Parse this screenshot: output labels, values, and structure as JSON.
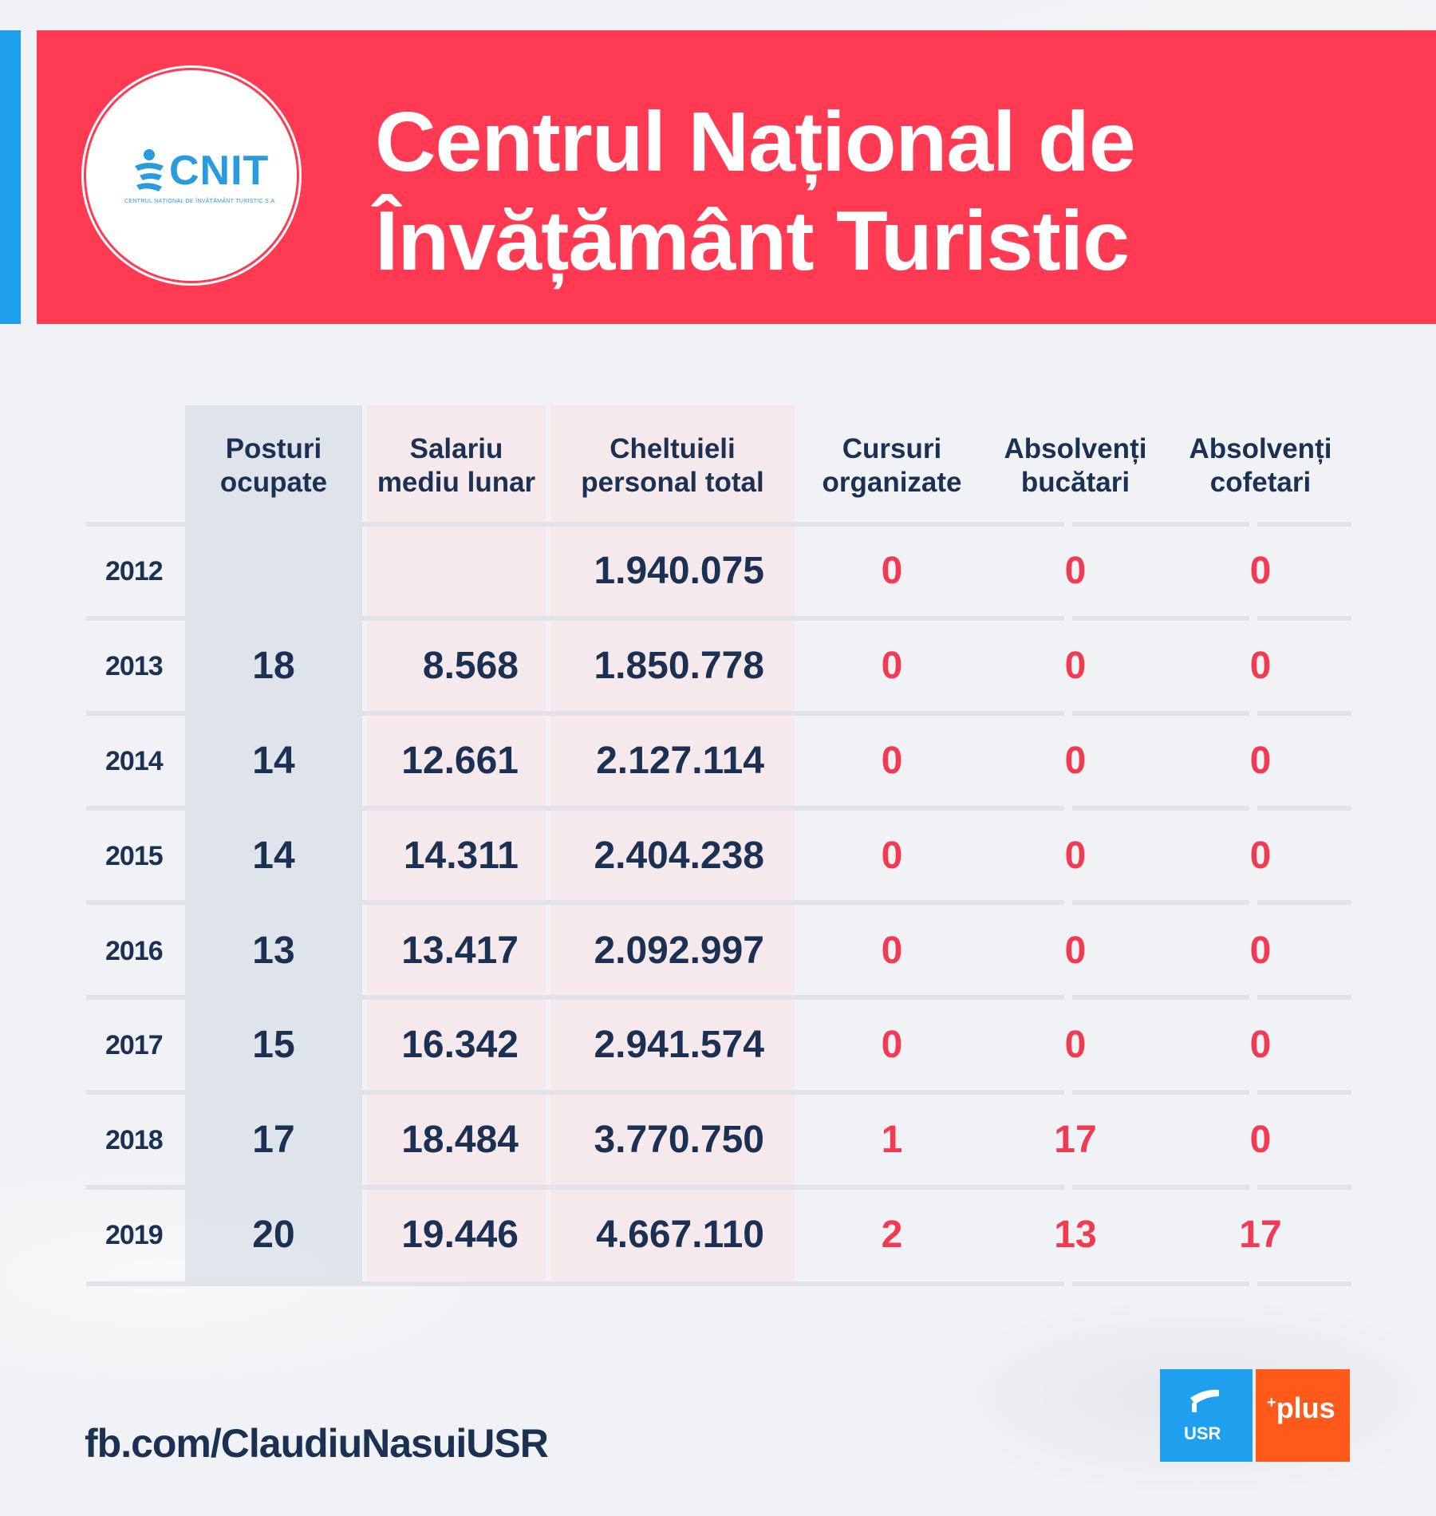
{
  "header": {
    "title_line1": "Centrul Național de",
    "title_line2": "Învățământ Turistic",
    "logo_text": "CNIT",
    "logo_subtext": "CENTRUL NAȚIONAL DE ÎNVĂȚĂMÂNT TURISTIC S.A.",
    "accent_color": "#ff3a52",
    "strip_color": "#1ea0ef"
  },
  "table": {
    "columns": [
      {
        "line1": "Posturi",
        "line2": "ocupate"
      },
      {
        "line1": "Salariu",
        "line2": "mediu lunar"
      },
      {
        "line1": "Cheltuieli",
        "line2": "personal total"
      },
      {
        "line1": "Cursuri",
        "line2": "organizate"
      },
      {
        "line1": "Absolvenți",
        "line2": "bucătari"
      },
      {
        "line1": "Absolvenți",
        "line2": "cofetari"
      }
    ],
    "rows": [
      {
        "year": "2012",
        "posturi": "",
        "salariu": "",
        "cheltuieli": "1.940.075",
        "cursuri": "0",
        "bucatari": "0",
        "cofetari": "0"
      },
      {
        "year": "2013",
        "posturi": "18",
        "salariu": "8.568",
        "cheltuieli": "1.850.778",
        "cursuri": "0",
        "bucatari": "0",
        "cofetari": "0"
      },
      {
        "year": "2014",
        "posturi": "14",
        "salariu": "12.661",
        "cheltuieli": "2.127.114",
        "cursuri": "0",
        "bucatari": "0",
        "cofetari": "0"
      },
      {
        "year": "2015",
        "posturi": "14",
        "salariu": "14.311",
        "cheltuieli": "2.404.238",
        "cursuri": "0",
        "bucatari": "0",
        "cofetari": "0"
      },
      {
        "year": "2016",
        "posturi": "13",
        "salariu": "13.417",
        "cheltuieli": "2.092.997",
        "cursuri": "0",
        "bucatari": "0",
        "cofetari": "0"
      },
      {
        "year": "2017",
        "posturi": "15",
        "salariu": "16.342",
        "cheltuieli": "2.941.574",
        "cursuri": "0",
        "bucatari": "0",
        "cofetari": "0"
      },
      {
        "year": "2018",
        "posturi": "17",
        "salariu": "18.484",
        "cheltuieli": "3.770.750",
        "cursuri": "1",
        "bucatari": "17",
        "cofetari": "0"
      },
      {
        "year": "2019",
        "posturi": "20",
        "salariu": "19.446",
        "cheltuieli": "4.667.110",
        "cursuri": "2",
        "bucatari": "13",
        "cofetari": "17"
      }
    ]
  },
  "footer": {
    "link": "fb.com/ClaudiuNasuiUSR",
    "usr_label": "USR",
    "plus_label": "plus",
    "plus_sup": "+",
    "usr_color": "#1ea0ef",
    "plus_color": "#ff5a1c"
  }
}
